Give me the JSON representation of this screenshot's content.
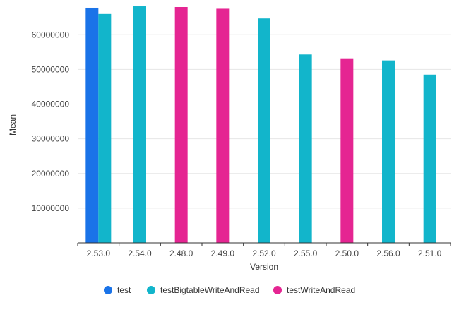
{
  "chart_data": {
    "type": "bar",
    "xlabel": "Version",
    "ylabel": "Mean",
    "ylim": [
      0,
      68000000
    ],
    "yticks": [
      10000000,
      20000000,
      30000000,
      40000000,
      50000000,
      60000000
    ],
    "ytick_labels": [
      "10000000",
      "20000000",
      "30000000",
      "40000000",
      "50000000",
      "60000000"
    ],
    "categories": [
      "2.53.0",
      "2.54.0",
      "2.48.0",
      "2.49.0",
      "2.52.0",
      "2.55.0",
      "2.50.0",
      "2.56.0",
      "2.51.0"
    ],
    "grid": true,
    "legend_position": "bottom",
    "series": [
      {
        "name": "test",
        "color": "#1a73e8",
        "values": [
          67800000,
          null,
          null,
          null,
          null,
          null,
          null,
          null,
          null
        ]
      },
      {
        "name": "testBigtableWriteAndRead",
        "color": "#12b5cb",
        "values": [
          66000000,
          68200000,
          null,
          null,
          64700000,
          54300000,
          null,
          52600000,
          48500000
        ]
      },
      {
        "name": "testWriteAndRead",
        "color": "#e52592",
        "values": [
          null,
          null,
          68000000,
          67500000,
          null,
          null,
          53200000,
          null,
          null
        ]
      }
    ]
  }
}
